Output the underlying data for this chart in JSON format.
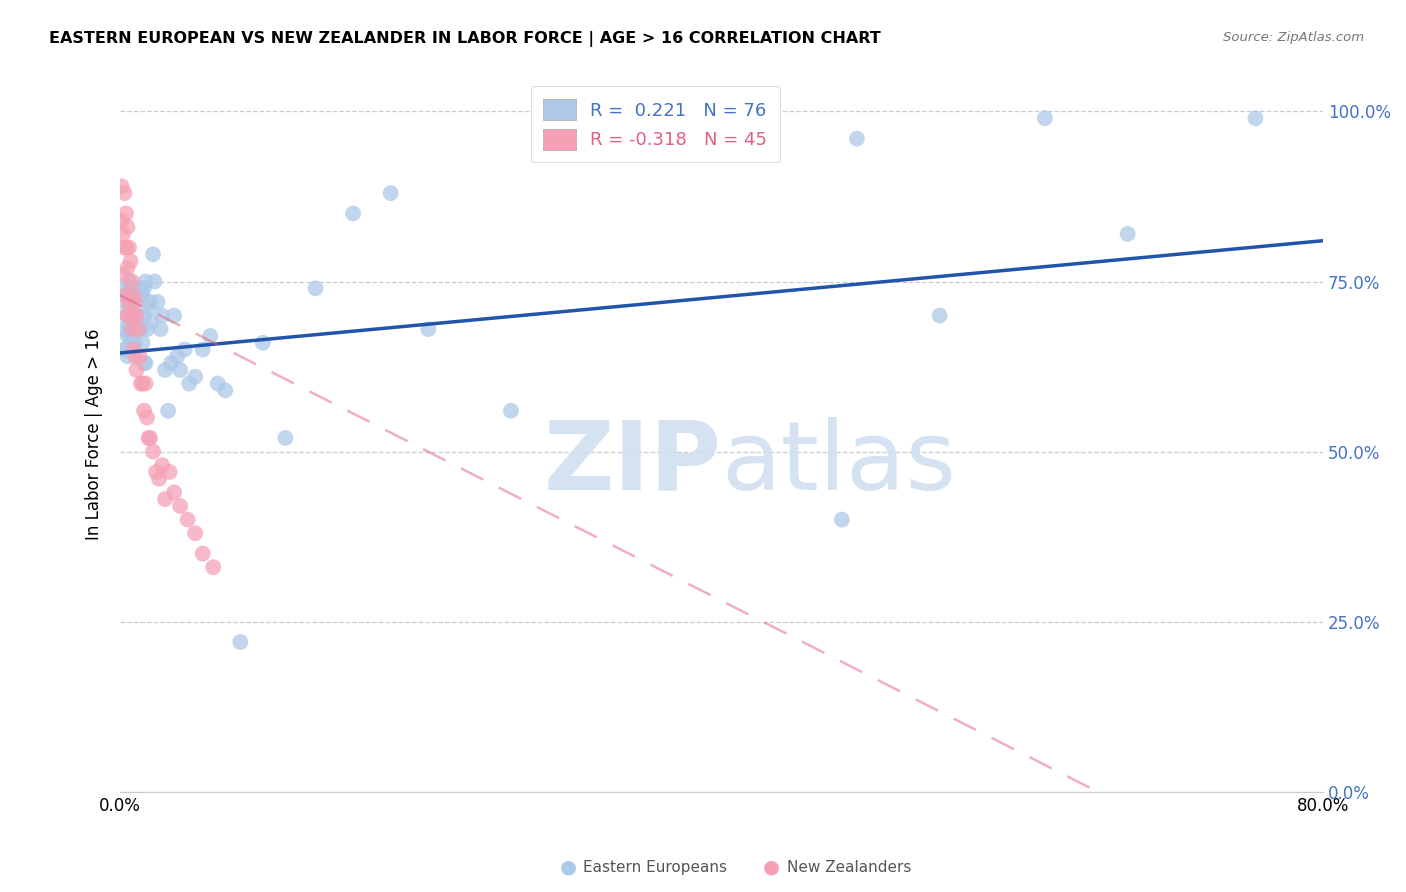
{
  "title": "EASTERN EUROPEAN VS NEW ZEALANDER IN LABOR FORCE | AGE > 16 CORRELATION CHART",
  "source": "Source: ZipAtlas.com",
  "ylabel": "In Labor Force | Age > 16",
  "xlim": [
    0.0,
    0.8
  ],
  "ylim": [
    0.0,
    1.05
  ],
  "yticks": [
    0.0,
    0.25,
    0.5,
    0.75,
    1.0
  ],
  "ytick_labels": [
    "0.0%",
    "25.0%",
    "50.0%",
    "75.0%",
    "100.0%"
  ],
  "xtick_positions": [
    0.0,
    0.1,
    0.2,
    0.3,
    0.4,
    0.5,
    0.6,
    0.7,
    0.8
  ],
  "xtick_labels": [
    "0.0%",
    "",
    "",
    "",
    "",
    "",
    "",
    "",
    "80.0%"
  ],
  "blue_R": 0.221,
  "blue_N": 76,
  "pink_R": -0.318,
  "pink_N": 45,
  "blue_color": "#adc8e8",
  "pink_color": "#f5a0b5",
  "blue_line_color": "#2255aa",
  "pink_line_color": "#e06080",
  "watermark_color": "#d0dff0",
  "legend_label_blue": "Eastern Europeans",
  "legend_label_pink": "New Zealanders",
  "blue_line_x0": 0.0,
  "blue_line_y0": 0.645,
  "blue_line_x1": 0.8,
  "blue_line_y1": 0.81,
  "pink_line_x0": 0.0,
  "pink_line_y0": 0.73,
  "pink_line_x1": 0.65,
  "pink_line_y1": 0.0,
  "blue_x": [
    0.003,
    0.003,
    0.003,
    0.004,
    0.004,
    0.004,
    0.005,
    0.005,
    0.005,
    0.005,
    0.006,
    0.006,
    0.006,
    0.007,
    0.007,
    0.007,
    0.008,
    0.008,
    0.008,
    0.009,
    0.009,
    0.009,
    0.01,
    0.01,
    0.01,
    0.011,
    0.011,
    0.012,
    0.012,
    0.013,
    0.013,
    0.014,
    0.014,
    0.015,
    0.015,
    0.016,
    0.016,
    0.016,
    0.017,
    0.017,
    0.018,
    0.019,
    0.02,
    0.021,
    0.022,
    0.023,
    0.025,
    0.027,
    0.028,
    0.03,
    0.032,
    0.034,
    0.036,
    0.038,
    0.04,
    0.043,
    0.046,
    0.05,
    0.055,
    0.06,
    0.065,
    0.07,
    0.08,
    0.095,
    0.11,
    0.13,
    0.155,
    0.18,
    0.205,
    0.26,
    0.48,
    0.49,
    0.545,
    0.615,
    0.67,
    0.755
  ],
  "blue_y": [
    0.68,
    0.72,
    0.65,
    0.74,
    0.7,
    0.65,
    0.73,
    0.7,
    0.67,
    0.64,
    0.75,
    0.71,
    0.68,
    0.74,
    0.7,
    0.67,
    0.74,
    0.71,
    0.67,
    0.73,
    0.7,
    0.66,
    0.73,
    0.7,
    0.66,
    0.74,
    0.68,
    0.74,
    0.69,
    0.73,
    0.68,
    0.74,
    0.68,
    0.73,
    0.66,
    0.74,
    0.7,
    0.63,
    0.75,
    0.63,
    0.68,
    0.71,
    0.72,
    0.69,
    0.79,
    0.75,
    0.72,
    0.68,
    0.7,
    0.62,
    0.56,
    0.63,
    0.7,
    0.64,
    0.62,
    0.65,
    0.6,
    0.61,
    0.65,
    0.67,
    0.6,
    0.59,
    0.22,
    0.66,
    0.52,
    0.74,
    0.85,
    0.88,
    0.68,
    0.56,
    0.4,
    0.96,
    0.7,
    0.99,
    0.82,
    0.99
  ],
  "pink_x": [
    0.001,
    0.001,
    0.002,
    0.002,
    0.003,
    0.003,
    0.004,
    0.004,
    0.004,
    0.005,
    0.005,
    0.005,
    0.006,
    0.006,
    0.007,
    0.007,
    0.008,
    0.008,
    0.009,
    0.009,
    0.01,
    0.01,
    0.011,
    0.011,
    0.012,
    0.013,
    0.014,
    0.015,
    0.016,
    0.017,
    0.018,
    0.019,
    0.02,
    0.022,
    0.024,
    0.026,
    0.028,
    0.03,
    0.033,
    0.036,
    0.04,
    0.045,
    0.05,
    0.055,
    0.062
  ],
  "pink_y": [
    0.89,
    0.84,
    0.82,
    0.76,
    0.88,
    0.8,
    0.85,
    0.8,
    0.73,
    0.83,
    0.77,
    0.7,
    0.8,
    0.72,
    0.78,
    0.7,
    0.75,
    0.68,
    0.73,
    0.65,
    0.72,
    0.64,
    0.7,
    0.62,
    0.68,
    0.64,
    0.6,
    0.6,
    0.56,
    0.6,
    0.55,
    0.52,
    0.52,
    0.5,
    0.47,
    0.46,
    0.48,
    0.43,
    0.47,
    0.44,
    0.42,
    0.4,
    0.38,
    0.35,
    0.33
  ]
}
